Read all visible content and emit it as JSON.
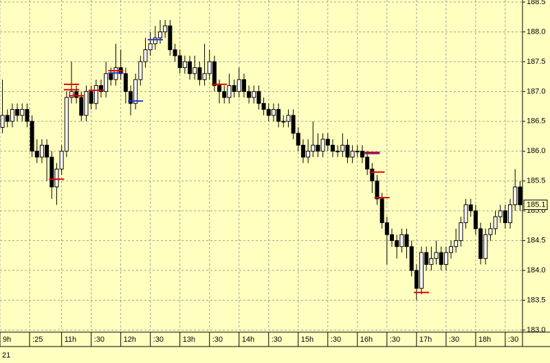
{
  "chart_data": {
    "type": "candlestick",
    "open": [
      186.4,
      186.6,
      186.5,
      186.7,
      186.6,
      186.7,
      186.5,
      186.0,
      185.9,
      186.1,
      185.9,
      185.4,
      185.7,
      186.0,
      186.9,
      187.0,
      186.9,
      186.6,
      187.0,
      186.8,
      187.1,
      187.0,
      187.3,
      187.2,
      187.4,
      187.3,
      187.0,
      186.8,
      187.2,
      187.5,
      187.7,
      187.8,
      187.9,
      188.0,
      188.1,
      187.7,
      187.6,
      187.4,
      187.5,
      187.3,
      187.4,
      187.2,
      187.3,
      187.5,
      187.1,
      187.0,
      186.9,
      187.1,
      187.0,
      187.2,
      187.0,
      186.9,
      187.0,
      186.8,
      186.7,
      186.6,
      186.7,
      186.5,
      186.5,
      186.6,
      186.3,
      186.1,
      185.9,
      186.0,
      186.1,
      186.0,
      186.2,
      186.1,
      186.0,
      186.0,
      186.1,
      185.9,
      186.0,
      186.0,
      185.9,
      185.7,
      185.5,
      185.2,
      184.8,
      184.6,
      184.5,
      184.4,
      184.6,
      184.4,
      184.0,
      183.7,
      184.3,
      184.1,
      184.2,
      184.3,
      184.1,
      184.3,
      184.4,
      184.5,
      184.8,
      185.1,
      185.0,
      184.7,
      184.2,
      184.6,
      184.7,
      184.9,
      185.0,
      184.8,
      185.1,
      185.4
    ],
    "high": [
      187.2,
      186.7,
      186.8,
      186.8,
      186.8,
      186.8,
      186.6,
      186.2,
      186.2,
      186.2,
      186.0,
      185.8,
      186.1,
      187.0,
      187.5,
      187.1,
      187.0,
      187.1,
      187.1,
      187.2,
      187.2,
      187.5,
      187.4,
      187.8,
      187.7,
      187.4,
      187.1,
      187.3,
      187.6,
      187.9,
      188.0,
      188.1,
      188.2,
      188.2,
      188.2,
      187.8,
      187.7,
      187.6,
      187.6,
      187.6,
      187.5,
      187.8,
      187.7,
      187.6,
      187.2,
      187.1,
      187.3,
      187.2,
      187.4,
      187.3,
      187.1,
      187.1,
      187.1,
      186.9,
      186.8,
      186.8,
      186.8,
      186.6,
      186.7,
      186.7,
      186.4,
      186.2,
      186.2,
      186.5,
      186.3,
      186.3,
      186.3,
      186.2,
      186.1,
      186.3,
      186.2,
      186.1,
      186.1,
      186.1,
      186.0,
      185.8,
      185.6,
      185.3,
      184.9,
      184.7,
      184.6,
      184.7,
      184.7,
      184.5,
      184.1,
      184.4,
      184.4,
      184.4,
      184.5,
      184.4,
      184.4,
      184.5,
      184.7,
      184.9,
      185.2,
      185.2,
      185.1,
      184.8,
      184.7,
      184.8,
      185.0,
      185.1,
      185.1,
      185.2,
      185.7,
      185.5
    ],
    "low": [
      186.3,
      186.4,
      186.4,
      186.5,
      186.5,
      186.4,
      185.9,
      185.8,
      185.8,
      185.5,
      185.2,
      185.1,
      185.6,
      185.9,
      186.8,
      186.8,
      186.5,
      186.5,
      186.7,
      186.7,
      186.9,
      186.9,
      187.1,
      187.1,
      187.2,
      186.8,
      186.6,
      186.7,
      187.1,
      187.4,
      187.6,
      187.7,
      187.8,
      187.9,
      187.6,
      187.5,
      187.3,
      187.3,
      187.2,
      187.2,
      187.1,
      187.1,
      187.2,
      187.0,
      186.8,
      186.8,
      186.8,
      186.9,
      186.9,
      186.9,
      186.8,
      186.8,
      186.7,
      186.6,
      186.5,
      186.5,
      186.4,
      186.4,
      186.4,
      186.2,
      186.0,
      185.8,
      185.8,
      185.9,
      185.9,
      185.9,
      186.0,
      185.9,
      185.9,
      185.9,
      185.8,
      185.8,
      185.9,
      185.8,
      185.6,
      185.3,
      185.1,
      184.7,
      184.1,
      184.4,
      184.2,
      184.3,
      184.2,
      183.9,
      183.5,
      183.6,
      184.0,
      184.0,
      184.1,
      184.0,
      184.0,
      184.2,
      184.3,
      184.4,
      184.7,
      184.9,
      184.6,
      184.1,
      184.1,
      184.5,
      184.6,
      184.8,
      184.7,
      184.7,
      185.0,
      185.0
    ],
    "close": [
      186.6,
      186.5,
      186.7,
      186.6,
      186.7,
      186.5,
      186.0,
      185.9,
      186.1,
      185.9,
      185.4,
      185.7,
      186.0,
      186.9,
      187.0,
      186.9,
      186.6,
      187.0,
      186.8,
      187.1,
      187.0,
      187.3,
      187.2,
      187.4,
      187.3,
      187.0,
      186.8,
      187.2,
      187.5,
      187.7,
      187.8,
      187.9,
      188.0,
      188.1,
      187.7,
      187.6,
      187.4,
      187.5,
      187.3,
      187.4,
      187.2,
      187.3,
      187.5,
      187.1,
      187.0,
      186.9,
      187.1,
      187.0,
      187.2,
      187.0,
      186.9,
      187.0,
      186.8,
      186.7,
      186.6,
      186.7,
      186.5,
      186.5,
      186.6,
      186.3,
      186.1,
      185.9,
      186.0,
      186.1,
      186.0,
      186.2,
      186.1,
      186.0,
      186.0,
      186.1,
      185.9,
      186.0,
      186.0,
      185.9,
      185.7,
      185.5,
      185.2,
      184.8,
      184.6,
      184.5,
      184.4,
      184.6,
      184.4,
      184.0,
      183.7,
      184.3,
      184.1,
      184.2,
      184.3,
      184.1,
      184.3,
      184.4,
      184.5,
      184.8,
      185.1,
      185.0,
      184.7,
      184.2,
      184.6,
      184.7,
      184.9,
      185.0,
      184.8,
      185.1,
      185.4,
      185.1
    ],
    "up_color": "#ffffff",
    "down_color": "#000000",
    "last_price": 185.1,
    "markers": [
      {
        "x": 11,
        "value": 185.53,
        "color": "#e00000"
      },
      {
        "x": 14,
        "value": 187.12,
        "color": "#e00000"
      },
      {
        "x": 14,
        "value": 187.03,
        "color": "#e00000"
      },
      {
        "x": 15,
        "value": 186.93,
        "color": "#e00000"
      },
      {
        "x": 19,
        "value": 187.02,
        "color": "#e00000"
      },
      {
        "x": 23,
        "value": 187.35,
        "color": "#e00000"
      },
      {
        "x": 23,
        "value": 187.31,
        "color": "#2030d0"
      },
      {
        "x": 27,
        "value": 186.84,
        "color": "#2030d0"
      },
      {
        "x": 31,
        "value": 187.87,
        "color": "#2030d0"
      },
      {
        "x": 44,
        "value": 187.12,
        "color": "#e00000"
      },
      {
        "x": 75,
        "value": 185.98,
        "color": "#e00000"
      },
      {
        "x": 75,
        "value": 185.96,
        "color": "#6020a0"
      },
      {
        "x": 76,
        "value": 185.65,
        "color": "#e00000"
      },
      {
        "x": 77,
        "value": 185.22,
        "color": "#e00000"
      },
      {
        "x": 85,
        "value": 183.63,
        "color": "#e00000"
      }
    ],
    "xlim": [
      -0.5,
      105.5
    ],
    "xticks": [
      {
        "value": -0.5,
        "label": "9h"
      },
      {
        "value": 5.5,
        "label": ":25"
      },
      {
        "value": 12,
        "label": "11h"
      },
      {
        "value": 18,
        "label": ":30"
      },
      {
        "value": 24,
        "label": "12h"
      },
      {
        "value": 30,
        "label": ":30"
      },
      {
        "value": 36,
        "label": "13h"
      },
      {
        "value": 42,
        "label": ":30"
      },
      {
        "value": 48,
        "label": "14h"
      },
      {
        "value": 54,
        "label": ":30"
      },
      {
        "value": 60,
        "label": "15h"
      },
      {
        "value": 66,
        "label": ":30"
      },
      {
        "value": 72,
        "label": "16h"
      },
      {
        "value": 78,
        "label": ":30"
      },
      {
        "value": 84,
        "label": "17h"
      },
      {
        "value": 90,
        "label": ":30"
      },
      {
        "value": 96,
        "label": "18h"
      },
      {
        "value": 102,
        "label": ":30"
      }
    ],
    "date_label": "21",
    "ylim": [
      183.0,
      188.5
    ],
    "yticks": [
      {
        "value": 183,
        "label": "183.0"
      },
      {
        "value": 183.5,
        "label": "183.5"
      },
      {
        "value": 184,
        "label": "184.0"
      },
      {
        "value": 184.5,
        "label": "184.5"
      },
      {
        "value": 185,
        "label": "185.0"
      },
      {
        "value": 185.5,
        "label": "185.5"
      },
      {
        "value": 186,
        "label": "186.0"
      },
      {
        "value": 186.5,
        "label": "186.5"
      },
      {
        "value": 187,
        "label": "187.0"
      },
      {
        "value": 187.5,
        "label": "187.5"
      },
      {
        "value": 188,
        "label": "188.0"
      },
      {
        "value": 188.5,
        "label": "188.5"
      }
    ],
    "grid": true
  }
}
